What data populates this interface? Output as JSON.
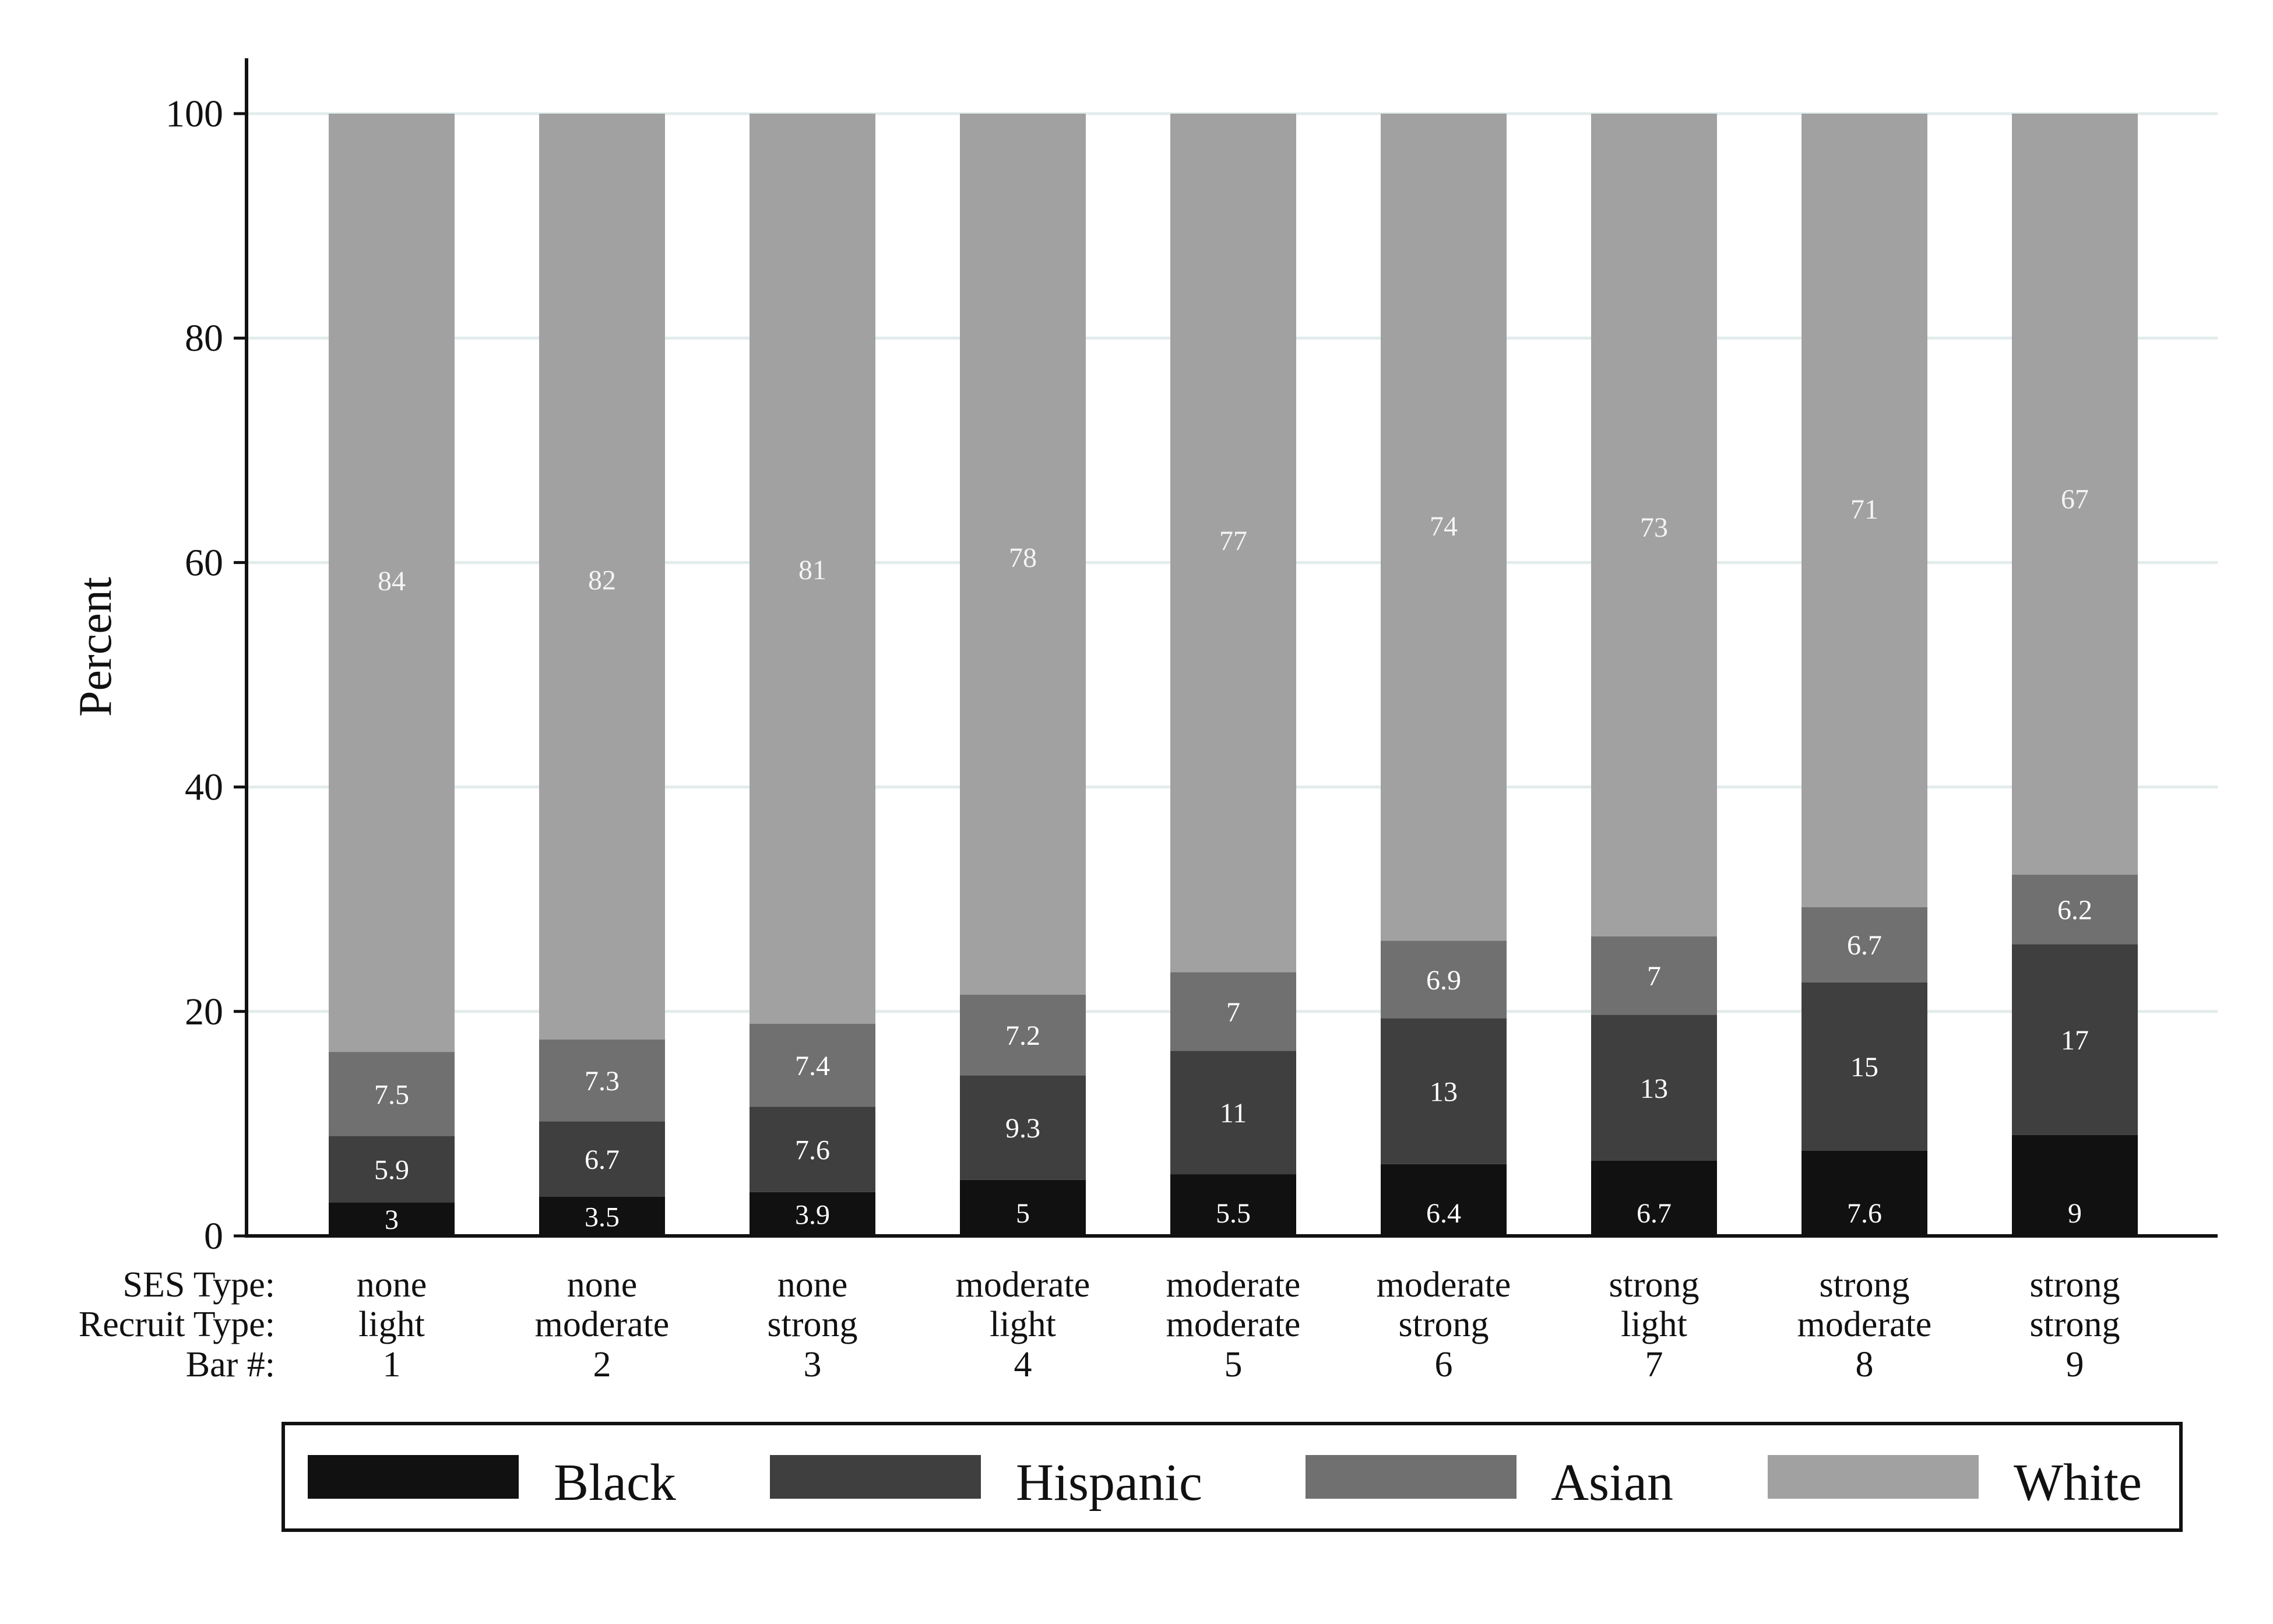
{
  "chart_data": {
    "type": "bar",
    "stacked": true,
    "ylabel": "Percent",
    "ylim": [
      0,
      100
    ],
    "yticks": [
      0,
      20,
      40,
      60,
      80,
      100
    ],
    "grid": true,
    "legend_position": "bottom",
    "row_labels": [
      "SES Type:",
      "Recruit Type:",
      "Bar #:"
    ],
    "categories": [
      {
        "ses": "none",
        "recruit": "light",
        "bar": "1"
      },
      {
        "ses": "none",
        "recruit": "moderate",
        "bar": "2"
      },
      {
        "ses": "none",
        "recruit": "strong",
        "bar": "3"
      },
      {
        "ses": "moderate",
        "recruit": "light",
        "bar": "4"
      },
      {
        "ses": "moderate",
        "recruit": "moderate",
        "bar": "5"
      },
      {
        "ses": "moderate",
        "recruit": "strong",
        "bar": "6"
      },
      {
        "ses": "strong",
        "recruit": "light",
        "bar": "7"
      },
      {
        "ses": "strong",
        "recruit": "moderate",
        "bar": "8"
      },
      {
        "ses": "strong",
        "recruit": "strong",
        "bar": "9"
      }
    ],
    "series": [
      {
        "name": "Black",
        "color": "#111111",
        "values": [
          3,
          3.5,
          3.9,
          5,
          5.5,
          6.4,
          6.7,
          7.6,
          9
        ]
      },
      {
        "name": "Hispanic",
        "color": "#3f3f3f",
        "values": [
          5.9,
          6.7,
          7.6,
          9.3,
          11,
          13,
          13,
          15,
          17
        ]
      },
      {
        "name": "Asian",
        "color": "#707070",
        "values": [
          7.5,
          7.3,
          7.4,
          7.2,
          7,
          6.9,
          7,
          6.7,
          6.2
        ]
      },
      {
        "name": "White",
        "color": "#a1a1a1",
        "values": [
          84,
          82,
          81,
          78,
          77,
          74,
          73,
          71,
          67
        ]
      }
    ]
  }
}
